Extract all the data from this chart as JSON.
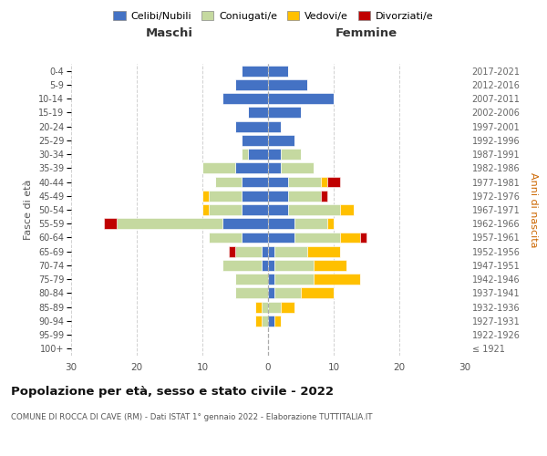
{
  "age_groups": [
    "100+",
    "95-99",
    "90-94",
    "85-89",
    "80-84",
    "75-79",
    "70-74",
    "65-69",
    "60-64",
    "55-59",
    "50-54",
    "45-49",
    "40-44",
    "35-39",
    "30-34",
    "25-29",
    "20-24",
    "15-19",
    "10-14",
    "5-9",
    "0-4"
  ],
  "birth_years": [
    "≤ 1921",
    "1922-1926",
    "1927-1931",
    "1932-1936",
    "1937-1941",
    "1942-1946",
    "1947-1951",
    "1952-1956",
    "1957-1961",
    "1962-1966",
    "1967-1971",
    "1972-1976",
    "1977-1981",
    "1982-1986",
    "1987-1991",
    "1992-1996",
    "1997-2001",
    "2002-2006",
    "2007-2011",
    "2012-2016",
    "2017-2021"
  ],
  "colors": {
    "celibi": "#4472c4",
    "coniugati": "#c5d9a0",
    "vedovi": "#ffc000",
    "divorziati": "#c00000"
  },
  "male": {
    "celibi": [
      0,
      0,
      0,
      0,
      0,
      0,
      1,
      1,
      4,
      7,
      4,
      4,
      4,
      5,
      3,
      4,
      5,
      3,
      7,
      5,
      4
    ],
    "coniugati": [
      0,
      0,
      1,
      1,
      5,
      5,
      6,
      4,
      5,
      16,
      5,
      5,
      4,
      5,
      1,
      0,
      0,
      0,
      0,
      0,
      0
    ],
    "vedovi": [
      0,
      0,
      1,
      1,
      0,
      0,
      0,
      0,
      0,
      0,
      1,
      1,
      0,
      0,
      0,
      0,
      0,
      0,
      0,
      0,
      0
    ],
    "divorziati": [
      0,
      0,
      0,
      0,
      0,
      0,
      0,
      1,
      0,
      2,
      0,
      0,
      0,
      0,
      0,
      0,
      0,
      0,
      0,
      0,
      0
    ]
  },
  "female": {
    "celibi": [
      0,
      0,
      1,
      0,
      1,
      1,
      1,
      1,
      4,
      4,
      3,
      3,
      3,
      2,
      2,
      4,
      2,
      5,
      10,
      6,
      3
    ],
    "coniugati": [
      0,
      0,
      0,
      2,
      4,
      6,
      6,
      5,
      7,
      5,
      8,
      5,
      5,
      5,
      3,
      0,
      0,
      0,
      0,
      0,
      0
    ],
    "vedovi": [
      0,
      0,
      1,
      2,
      5,
      7,
      5,
      5,
      3,
      1,
      2,
      0,
      1,
      0,
      0,
      0,
      0,
      0,
      0,
      0,
      0
    ],
    "divorziati": [
      0,
      0,
      0,
      0,
      0,
      0,
      0,
      0,
      1,
      0,
      0,
      1,
      2,
      0,
      0,
      0,
      0,
      0,
      0,
      0,
      0
    ]
  },
  "xlim": [
    -30,
    30
  ],
  "xlabel_left": "Maschi",
  "xlabel_right": "Femmine",
  "ylabel_left": "Fasce di età",
  "ylabel_right": "Anni di nascita",
  "title": "Popolazione per età, sesso e stato civile - 2022",
  "subtitle": "COMUNE DI ROCCA DI CAVE (RM) - Dati ISTAT 1° gennaio 2022 - Elaborazione TUTTITALIA.IT",
  "legend_labels": [
    "Celibi/Nubili",
    "Coniugati/e",
    "Vedovi/e",
    "Divorziati/e"
  ],
  "xticks": [
    -30,
    -20,
    -10,
    0,
    10,
    20,
    30
  ],
  "xticklabels": [
    "30",
    "20",
    "10",
    "0",
    "10",
    "20",
    "30"
  ],
  "background_color": "#ffffff",
  "grid_color": "#cccccc"
}
